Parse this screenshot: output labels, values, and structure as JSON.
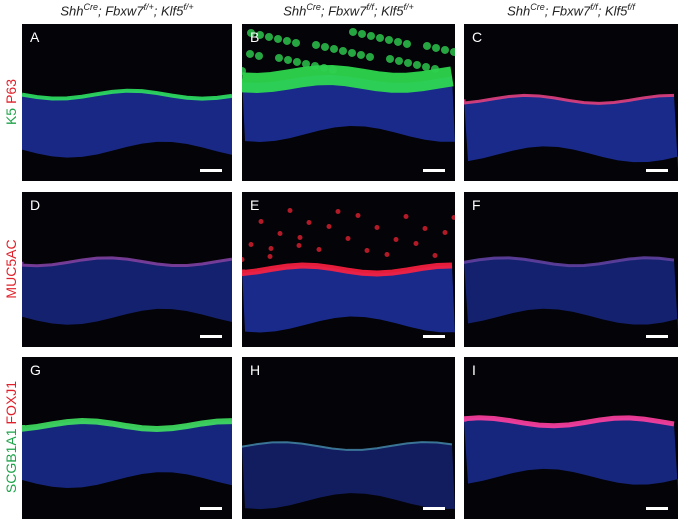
{
  "columns": [
    [
      {
        "base": "Shh",
        "sup": "Cre"
      },
      {
        "base": "; Fbxw7",
        "sup": "f/+"
      },
      {
        "base": "; Klf5",
        "sup": "f/+"
      }
    ],
    [
      {
        "base": "Shh",
        "sup": "Cre"
      },
      {
        "base": "; Fbxw7",
        "sup": "f/f"
      },
      {
        "base": "; Klf5",
        "sup": "f/+"
      }
    ],
    [
      {
        "base": "Shh",
        "sup": "Cre"
      },
      {
        "base": "; Fbxw7",
        "sup": "f/f"
      },
      {
        "base": "; Klf5",
        "sup": "f/f"
      }
    ]
  ],
  "rows": [
    {
      "markers": [
        {
          "text": "K5",
          "color": "green"
        },
        {
          "text": "P63",
          "color": "red"
        }
      ],
      "panels": [
        "A",
        "B",
        "C"
      ]
    },
    {
      "markers": [
        {
          "text": "MUC5AC",
          "color": "red"
        }
      ],
      "panels": [
        "D",
        "E",
        "F"
      ]
    },
    {
      "markers": [
        {
          "text": "SCGB1A1",
          "color": "green"
        },
        {
          "text": "FOXJ1",
          "color": "red"
        }
      ],
      "panels": [
        "G",
        "H",
        "I"
      ]
    }
  ]
}
